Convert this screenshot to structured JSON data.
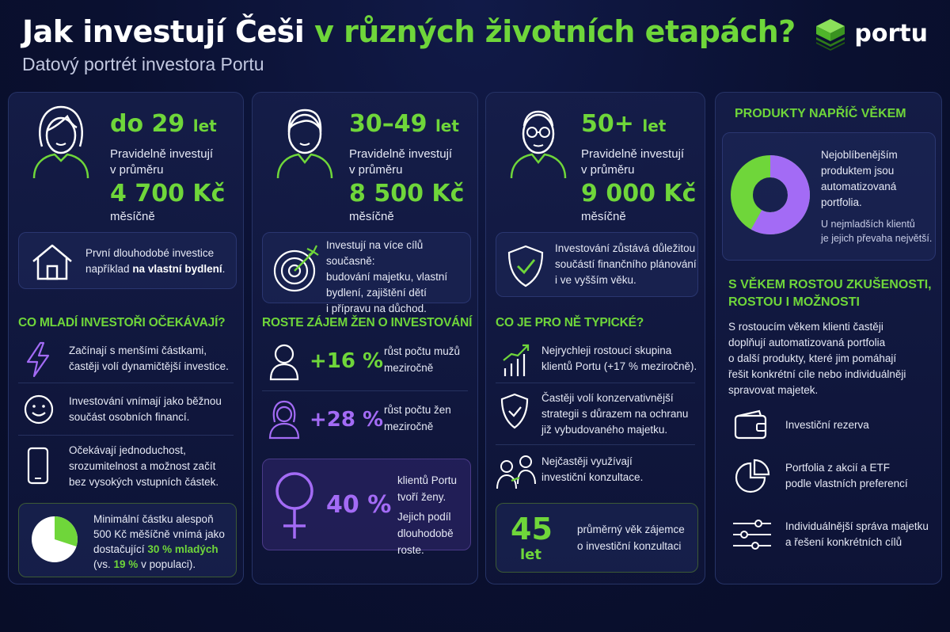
{
  "header": {
    "title_white": "Jak investují Češi",
    "title_green": "v různých životních etapách?",
    "subtitle": "Datový portrét investora Portu",
    "logo": "portu"
  },
  "colors": {
    "green": "#6fd63a",
    "purple": "#a36bf5",
    "background": "#0a1030"
  },
  "young": {
    "age": "do 29",
    "unit": "let",
    "text1": "Pravidelně investují",
    "text2": "v průměru",
    "amount": "4 700 Kč",
    "month": "měsíčně",
    "inset_line1": "První dlouhodobé investice",
    "inset_line2": "například",
    "inset_bold": "na vlastní bydlení",
    "inset_end": ".",
    "section_title": "CO MLADÍ INVESTOŘI OČEKÁVAJÍ?",
    "items": [
      {
        "icon": "lightning-icon",
        "line1": "Začínají s menšími částkami,",
        "line2": "častěji volí dynamičtější investice."
      },
      {
        "icon": "smiley-icon",
        "line1": "Investování vnímají jako běžnou",
        "line2": "součást osobních financí."
      },
      {
        "icon": "phone-icon",
        "line1": "Očekávají jednoduchost,",
        "line2": "srozumitelnost a možnost začít",
        "line3": "bez vysokých vstupních částek."
      }
    ],
    "min_line1": "Minimální částku alespoň",
    "min_line2": "500 Kč měšíčně vnímá jako",
    "min_line3a": "dostačující",
    "min_line3b": "30 % mladých",
    "min_line4a": "(vs.",
    "min_line4b": "19 %",
    "min_line4c": "v populaci).",
    "pie_share": 0.3
  },
  "middle": {
    "age": "30–49",
    "unit": "let",
    "text1": "Pravidelně investují",
    "text2": "v průměru",
    "amount": "8 500 Kč",
    "month": "měsíčně",
    "inset_lines": [
      "Investují na více cílů současně:",
      "budování majetku, vlastní",
      "bydlení, zajištění dětí",
      "i přípravu na důchod."
    ],
    "section_title": "ROSTE ZÁJEM ŽEN O INVESTOVÁNÍ",
    "men_stat": "+16 %",
    "men_line1": "růst počtu mužů",
    "men_line2": "meziročně",
    "women_stat": "+28 %",
    "women_line1": "růst počtu žen",
    "women_line2": "meziročně",
    "share_stat": "40 %",
    "share_line1": "klientů Portu",
    "share_line2": "tvoří ženy.",
    "share_line3": "Jejich podíl",
    "share_line4": "dlouhodobě roste."
  },
  "senior": {
    "age": "50+",
    "unit": "let",
    "text1": "Pravidelně investují",
    "text2": "v průměru",
    "amount": "9 000 Kč",
    "month": "měsíčně",
    "inset_lines": [
      "Investování zůstává důležitou",
      "součástí finančního plánování",
      "i ve vyšším věku."
    ],
    "section_title": "CO JE PRO NĚ TYPICKÉ?",
    "items": [
      {
        "icon": "growth-chart-icon",
        "line1": "Nejrychleji rostoucí skupina",
        "line2": "klientů Portu (+17 % meziročně)."
      },
      {
        "icon": "shield-check-icon",
        "line1": "Častěji volí konzervativnější",
        "line2": "strategii s důrazem na ochranu",
        "line3": "již vybudovaného majetku."
      },
      {
        "icon": "consultation-icon",
        "line1": "Nejčastěji využívají",
        "line2": "investiční konzultace."
      }
    ],
    "avg_age": "45",
    "avg_unit": "let",
    "avg_line1": "průměrný věk zájemce",
    "avg_line2": "o investiční konzultaci"
  },
  "products": {
    "title": "PRODUKTY NAPŘÍČ VĚKEM",
    "donut_lines": [
      "Nejoblíbenějším",
      "produktem jsou",
      "automatizovaná",
      "portfolia."
    ],
    "donut_small": [
      "U nejmladších klientů",
      "je jejich převaha největší."
    ],
    "donut_share": 0.58,
    "title2_line1": "S VĚKEM ROSTOU ZKUŠENOSTI,",
    "title2_line2": "ROSTOU I MOŽNOSTI",
    "body_lines": [
      "S rostoucím věkem klienti častěji",
      "doplňují automatizovaná portfolia",
      "o další produkty, které jim pomáhají",
      "řešit konkrétní cíle nebo individuálněji",
      "spravovat majetek."
    ],
    "items": [
      {
        "icon": "wallet-icon",
        "line1": "Investiční rezerva",
        "line2": ""
      },
      {
        "icon": "pie-chart-icon",
        "line1": "Portfolia z akcií a ETF",
        "line2": "podle vlastních preferencí"
      },
      {
        "icon": "sliders-icon",
        "line1": "Individuálnější správa majetku",
        "line2": "a řešení konkrétních cílů"
      }
    ]
  }
}
